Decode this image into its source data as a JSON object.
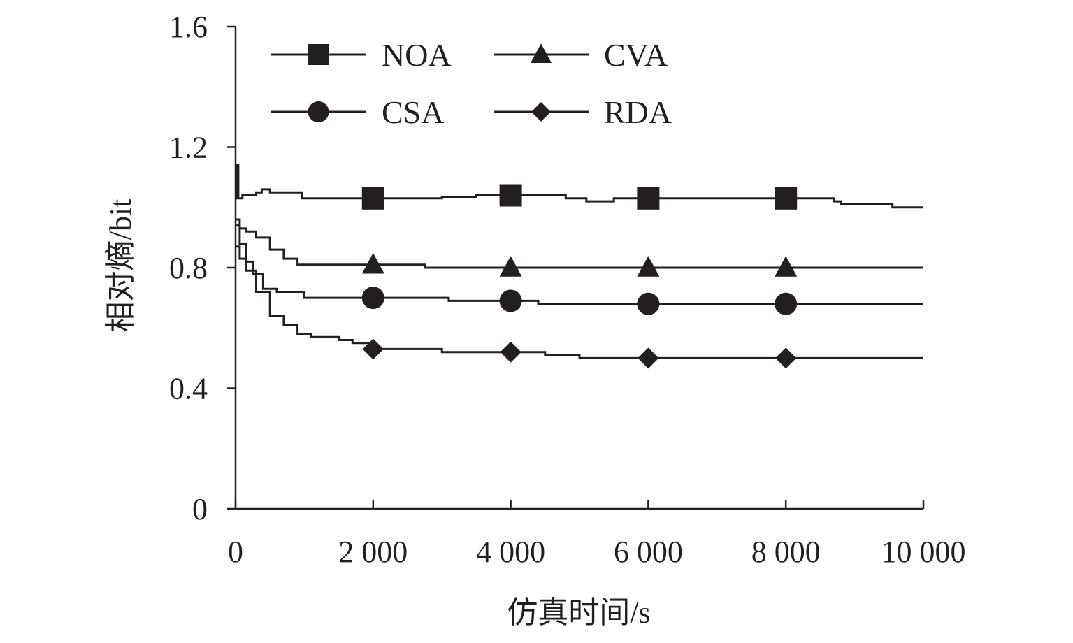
{
  "chart_data": {
    "type": "line",
    "title": "",
    "xlabel": "仿真时间/s",
    "ylabel": "相对熵/bit",
    "xlim": [
      0,
      10000
    ],
    "ylim": [
      0,
      1.6
    ],
    "x_ticks": [
      0,
      2000,
      4000,
      6000,
      8000,
      10000
    ],
    "x_tick_labels": [
      "0",
      "2 000",
      "4 000",
      "6 000",
      "8 000",
      "10 000"
    ],
    "y_ticks": [
      0,
      0.4,
      0.8,
      1.2,
      1.6
    ],
    "y_tick_labels": [
      "0",
      "0.4",
      "0.8",
      "1.2",
      "1.6"
    ],
    "grid": false,
    "legend_position": "top-left",
    "line_color": "#231f20",
    "series": [
      {
        "name": "NOA",
        "marker": "square",
        "x": [
          0,
          20,
          40,
          100,
          300,
          380,
          500,
          700,
          950,
          960,
          2000,
          2500,
          3000,
          3500,
          4000,
          4800,
          5100,
          5400,
          5500,
          6000,
          7000,
          8000,
          8700,
          8800,
          9500,
          9550,
          10000
        ],
        "y": [
          1.03,
          1.14,
          1.03,
          1.04,
          1.05,
          1.06,
          1.05,
          1.05,
          1.05,
          1.03,
          1.03,
          1.03,
          1.035,
          1.04,
          1.04,
          1.03,
          1.02,
          1.02,
          1.03,
          1.03,
          1.03,
          1.03,
          1.02,
          1.01,
          1.01,
          1.0,
          1.0
        ],
        "markers_x": [
          2000,
          4000,
          6000,
          8000
        ],
        "markers_y": [
          1.03,
          1.04,
          1.03,
          1.03
        ]
      },
      {
        "name": "CVA",
        "marker": "triangle",
        "x": [
          0,
          60,
          150,
          300,
          500,
          700,
          900,
          1000,
          2000,
          2700,
          2750,
          4000,
          6000,
          8000,
          10000
        ],
        "y": [
          0.96,
          0.93,
          0.92,
          0.9,
          0.86,
          0.83,
          0.81,
          0.81,
          0.81,
          0.81,
          0.8,
          0.8,
          0.8,
          0.8,
          0.8
        ],
        "markers_x": [
          2000,
          4000,
          6000,
          8000
        ],
        "markers_y": [
          0.81,
          0.8,
          0.8,
          0.8
        ]
      },
      {
        "name": "CSA",
        "marker": "circle",
        "x": [
          0,
          60,
          150,
          250,
          400,
          600,
          800,
          1000,
          2000,
          2700,
          3100,
          3500,
          4000,
          4400,
          6000,
          8000,
          10000
        ],
        "y": [
          0.94,
          0.88,
          0.82,
          0.78,
          0.73,
          0.72,
          0.72,
          0.7,
          0.7,
          0.7,
          0.69,
          0.69,
          0.69,
          0.68,
          0.68,
          0.68,
          0.68
        ],
        "markers_x": [
          2000,
          4000,
          6000,
          8000
        ],
        "markers_y": [
          0.7,
          0.69,
          0.68,
          0.68
        ]
      },
      {
        "name": "RDA",
        "marker": "diamond",
        "x": [
          0,
          60,
          150,
          300,
          500,
          700,
          900,
          1100,
          1300,
          1500,
          1700,
          2000,
          2500,
          3000,
          3500,
          4000,
          4500,
          5000,
          6000,
          8000,
          10000
        ],
        "y": [
          0.87,
          0.83,
          0.79,
          0.72,
          0.64,
          0.61,
          0.58,
          0.57,
          0.57,
          0.56,
          0.55,
          0.53,
          0.53,
          0.52,
          0.52,
          0.52,
          0.51,
          0.5,
          0.5,
          0.5,
          0.5
        ],
        "markers_x": [
          2000,
          4000,
          6000,
          8000
        ],
        "markers_y": [
          0.53,
          0.52,
          0.5,
          0.5
        ]
      }
    ]
  }
}
